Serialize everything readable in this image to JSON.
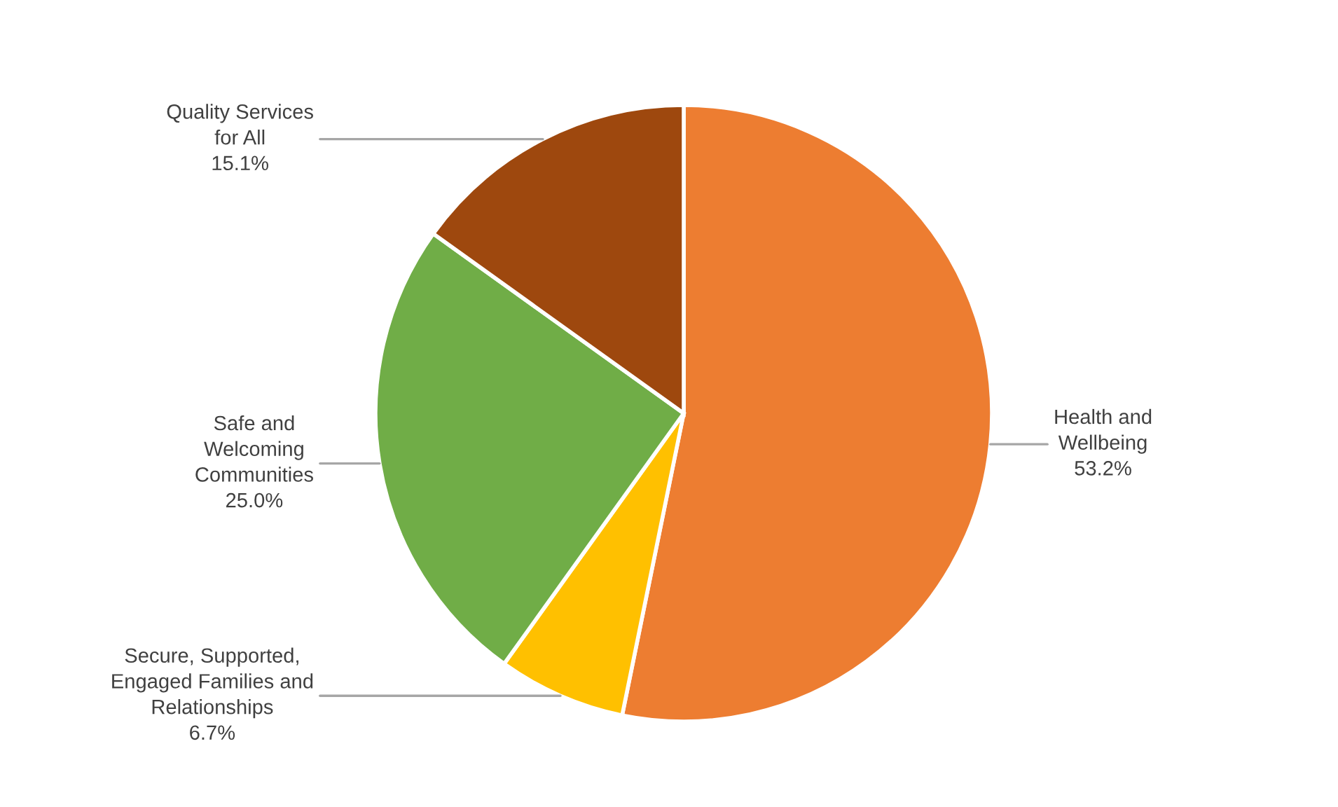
{
  "chart_data": {
    "type": "pie",
    "categories": [
      "Health and\nWellbeing",
      "Secure, Supported,\nEngaged Families and\nRelationships",
      "Safe and\nWelcoming\nCommunities",
      "Quality Services\nfor All"
    ],
    "values": [
      53.2,
      6.7,
      25.0,
      15.1
    ],
    "colors": [
      "#ed7d31",
      "#ffc000",
      "#70ad47",
      "#9e480e"
    ],
    "value_labels": [
      "53.2%",
      "6.7%",
      "25.0%",
      "15.1%"
    ]
  }
}
